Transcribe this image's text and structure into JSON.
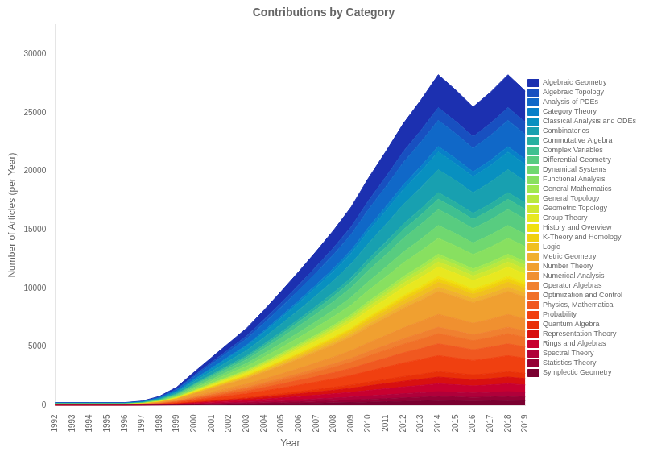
{
  "chart_data": {
    "type": "area",
    "stacked": true,
    "title": "Contributions by Category",
    "xlabel": "Year",
    "ylabel": "Number of Articles (per Year)",
    "x": [
      1992,
      1993,
      1994,
      1995,
      1996,
      1997,
      1998,
      1999,
      2000,
      2001,
      2002,
      2003,
      2004,
      2005,
      2006,
      2007,
      2008,
      2009,
      2010,
      2011,
      2012,
      2013,
      2014,
      2015,
      2016,
      2017,
      2018,
      2019
    ],
    "xlim": [
      1992,
      2019
    ],
    "xticks": [
      1992,
      1993,
      1994,
      1995,
      1996,
      1997,
      1998,
      1999,
      2000,
      2001,
      2002,
      2003,
      2004,
      2005,
      2006,
      2007,
      2008,
      2009,
      2010,
      2011,
      2012,
      2013,
      2014,
      2015,
      2016,
      2017,
      2018,
      2019
    ],
    "ylim": [
      0,
      32500
    ],
    "yticks": [
      0,
      5000,
      10000,
      15000,
      20000,
      25000,
      30000
    ],
    "grid": false,
    "legend": "right",
    "series": [
      {
        "name": "Symplectic Geometry",
        "color": "#7a0030",
        "values": [
          5,
          5,
          5,
          5,
          5,
          8,
          15,
          30,
          55,
          80,
          100,
          115,
          140,
          160,
          185,
          210,
          240,
          265,
          300,
          330,
          360,
          390,
          420,
          400,
          380,
          400,
          420,
          400
        ]
      },
      {
        "name": "Statistics Theory",
        "color": "#950035",
        "values": [
          3,
          3,
          3,
          3,
          3,
          5,
          10,
          20,
          35,
          50,
          65,
          80,
          100,
          120,
          140,
          165,
          185,
          210,
          240,
          270,
          300,
          325,
          355,
          340,
          320,
          335,
          355,
          335
        ]
      },
      {
        "name": "Spectral Theory",
        "color": "#b0003a",
        "values": [
          4,
          4,
          4,
          4,
          4,
          6,
          12,
          24,
          44,
          62,
          82,
          100,
          120,
          145,
          170,
          195,
          220,
          250,
          285,
          315,
          350,
          380,
          410,
          390,
          370,
          390,
          410,
          390
        ]
      },
      {
        "name": "Rings and Algebras",
        "color": "#c80030",
        "values": [
          6,
          6,
          6,
          6,
          6,
          10,
          20,
          38,
          68,
          98,
          128,
          158,
          195,
          235,
          275,
          315,
          360,
          405,
          465,
          520,
          575,
          620,
          670,
          640,
          605,
          635,
          670,
          635
        ]
      },
      {
        "name": "Representation Theory",
        "color": "#d81010",
        "values": [
          5,
          5,
          5,
          5,
          5,
          8,
          16,
          32,
          58,
          84,
          108,
          134,
          165,
          198,
          232,
          268,
          304,
          344,
          394,
          440,
          490,
          530,
          575,
          548,
          518,
          544,
          574,
          545
        ]
      },
      {
        "name": "Quantum Algebra",
        "color": "#e83008",
        "values": [
          4,
          4,
          4,
          4,
          4,
          6,
          13,
          26,
          47,
          68,
          88,
          108,
          134,
          160,
          188,
          216,
          246,
          278,
          318,
          356,
          395,
          428,
          464,
          442,
          418,
          438,
          462,
          439
        ]
      },
      {
        "name": "Probability",
        "color": "#f04010",
        "values": [
          12,
          12,
          12,
          12,
          12,
          18,
          38,
          76,
          138,
          198,
          258,
          318,
          392,
          472,
          552,
          636,
          722,
          818,
          938,
          1050,
          1165,
          1260,
          1365,
          1302,
          1232,
          1293,
          1365,
          1297
        ]
      },
      {
        "name": "Physics, Mathematical",
        "color": "#f05820",
        "values": [
          9,
          9,
          9,
          9,
          9,
          14,
          28,
          56,
          102,
          146,
          190,
          235,
          290,
          348,
          408,
          470,
          534,
          604,
          694,
          776,
          861,
          932,
          1010,
          963,
          910,
          956,
          1010,
          960
        ]
      },
      {
        "name": "Optimization and Control",
        "color": "#f07028",
        "values": [
          8,
          8,
          8,
          8,
          8,
          12,
          24,
          48,
          88,
          126,
          164,
          202,
          250,
          300,
          352,
          406,
          460,
          522,
          598,
          668,
          742,
          804,
          870,
          830,
          785,
          824,
          870,
          827
        ]
      },
      {
        "name": "Operator Algebras",
        "color": "#f08030",
        "values": [
          5,
          5,
          5,
          5,
          5,
          8,
          16,
          30,
          55,
          80,
          104,
          128,
          158,
          190,
          222,
          256,
          292,
          330,
          378,
          422,
          468,
          508,
          550,
          524,
          496,
          520,
          550,
          523
        ]
      },
      {
        "name": "Numerical Analysis",
        "color": "#f09030",
        "values": [
          10,
          10,
          10,
          10,
          10,
          15,
          30,
          60,
          110,
          158,
          206,
          254,
          314,
          376,
          440,
          508,
          578,
          654,
          750,
          838,
          930,
          1008,
          1092,
          1042,
          985,
          1034,
          1092,
          1038
        ]
      },
      {
        "name": "Number Theory",
        "color": "#f0a030",
        "values": [
          18,
          18,
          18,
          18,
          18,
          26,
          54,
          108,
          196,
          282,
          368,
          454,
          560,
          674,
          790,
          908,
          1034,
          1170,
          1342,
          1498,
          1664,
          1802,
          1952,
          1862,
          1762,
          1849,
          1952,
          1856
        ]
      },
      {
        "name": "Metric Geometry",
        "color": "#f0b030",
        "values": [
          3,
          3,
          3,
          3,
          3,
          5,
          10,
          20,
          36,
          52,
          68,
          84,
          104,
          124,
          146,
          168,
          190,
          216,
          248,
          276,
          306,
          332,
          360,
          343,
          325,
          341,
          360,
          342
        ]
      },
      {
        "name": "Logic",
        "color": "#f0c020",
        "values": [
          4,
          4,
          4,
          4,
          4,
          6,
          12,
          24,
          44,
          62,
          82,
          100,
          124,
          148,
          174,
          200,
          228,
          258,
          296,
          330,
          366,
          398,
          430,
          410,
          388,
          407,
          430,
          409
        ]
      },
      {
        "name": "K-Theory and Homology",
        "color": "#f0d010",
        "values": [
          3,
          3,
          3,
          3,
          3,
          4,
          8,
          16,
          29,
          42,
          55,
          68,
          84,
          100,
          118,
          136,
          154,
          174,
          200,
          224,
          248,
          268,
          290,
          277,
          262,
          275,
          290,
          276
        ]
      },
      {
        "name": "History and Overview",
        "color": "#f0e010",
        "values": [
          2,
          2,
          2,
          2,
          2,
          3,
          6,
          12,
          22,
          32,
          42,
          52,
          64,
          76,
          90,
          104,
          118,
          134,
          154,
          172,
          190,
          206,
          224,
          213,
          202,
          212,
          224,
          213
        ]
      },
      {
        "name": "Group Theory",
        "color": "#e8e820",
        "values": [
          7,
          7,
          7,
          7,
          7,
          11,
          22,
          44,
          80,
          114,
          150,
          184,
          228,
          274,
          320,
          368,
          418,
          474,
          544,
          608,
          674,
          730,
          792,
          755,
          715,
          750,
          792,
          753
        ]
      },
      {
        "name": "Geometric Topology",
        "color": "#d0e830",
        "values": [
          4,
          4,
          4,
          4,
          4,
          6,
          12,
          24,
          44,
          62,
          82,
          100,
          124,
          148,
          174,
          200,
          228,
          258,
          296,
          330,
          366,
          398,
          430,
          410,
          388,
          407,
          430,
          409
        ]
      },
      {
        "name": "General Topology",
        "color": "#b8e840",
        "values": [
          3,
          3,
          3,
          3,
          3,
          5,
          10,
          20,
          36,
          52,
          68,
          84,
          104,
          124,
          146,
          168,
          190,
          216,
          248,
          276,
          306,
          332,
          360,
          343,
          325,
          341,
          360,
          342
        ]
      },
      {
        "name": "General Mathematics",
        "color": "#a0e850",
        "values": [
          3,
          3,
          3,
          3,
          3,
          4,
          8,
          16,
          30,
          42,
          56,
          70,
          86,
          104,
          122,
          140,
          160,
          180,
          208,
          232,
          256,
          278,
          302,
          288,
          272,
          286,
          302,
          287
        ]
      },
      {
        "name": "Functional Analysis",
        "color": "#88e060",
        "values": [
          12,
          12,
          12,
          12,
          12,
          18,
          38,
          76,
          138,
          198,
          258,
          318,
          392,
          472,
          552,
          636,
          722,
          818,
          938,
          1050,
          1165,
          1260,
          1365,
          1302,
          1232,
          1293,
          1365,
          1297
        ]
      },
      {
        "name": "Dynamical Systems",
        "color": "#70d870",
        "values": [
          10,
          10,
          10,
          10,
          10,
          15,
          30,
          60,
          110,
          158,
          206,
          254,
          314,
          376,
          440,
          508,
          578,
          654,
          750,
          838,
          930,
          1008,
          1092,
          1042,
          985,
          1034,
          1092,
          1038
        ]
      },
      {
        "name": "Differential Geometry",
        "color": "#58cc80",
        "values": [
          12,
          12,
          12,
          12,
          12,
          18,
          38,
          76,
          138,
          198,
          258,
          318,
          392,
          472,
          552,
          636,
          722,
          818,
          938,
          1050,
          1165,
          1260,
          1365,
          1302,
          1232,
          1293,
          1365,
          1297
        ]
      },
      {
        "name": "Complex Variables",
        "color": "#40c090",
        "values": [
          8,
          8,
          8,
          8,
          8,
          12,
          24,
          48,
          88,
          126,
          164,
          202,
          250,
          300,
          352,
          406,
          460,
          522,
          598,
          668,
          742,
          804,
          870,
          830,
          785,
          824,
          870,
          827
        ]
      },
      {
        "name": "Commutative Algebra",
        "color": "#28b0a0",
        "values": [
          5,
          5,
          5,
          5,
          5,
          8,
          16,
          32,
          58,
          84,
          108,
          134,
          166,
          198,
          232,
          268,
          304,
          344,
          394,
          440,
          490,
          530,
          574,
          547,
          518,
          543,
          574,
          546
        ]
      },
      {
        "name": "Combinatorics",
        "color": "#18a0b0",
        "values": [
          18,
          18,
          18,
          18,
          18,
          26,
          54,
          108,
          196,
          282,
          368,
          454,
          560,
          674,
          790,
          908,
          1034,
          1170,
          1342,
          1498,
          1664,
          1802,
          1952,
          1862,
          1762,
          1849,
          1952,
          1856
        ]
      },
      {
        "name": "Classical Analysis and ODEs",
        "color": "#0890c0",
        "values": [
          14,
          14,
          14,
          14,
          14,
          20,
          42,
          84,
          152,
          218,
          284,
          352,
          434,
          522,
          610,
          702,
          798,
          904,
          1036,
          1158,
          1285,
          1390,
          1508,
          1438,
          1361,
          1428,
          1508,
          1434
        ]
      },
      {
        "name": "Category Theory",
        "color": "#0880c8",
        "values": [
          4,
          4,
          4,
          4,
          4,
          6,
          13,
          26,
          47,
          68,
          88,
          108,
          134,
          160,
          188,
          216,
          246,
          278,
          318,
          356,
          396,
          428,
          464,
          442,
          418,
          439,
          464,
          441
        ]
      },
      {
        "name": "Analysis of PDEs",
        "color": "#1068c8",
        "values": [
          20,
          20,
          20,
          20,
          20,
          30,
          62,
          124,
          226,
          324,
          422,
          522,
          644,
          772,
          904,
          1040,
          1184,
          1340,
          1536,
          1716,
          1906,
          2062,
          2234,
          2131,
          2017,
          2117,
          2234,
          2124
        ]
      },
      {
        "name": "Algebraic Topology",
        "color": "#1850c0",
        "values": [
          10,
          10,
          10,
          10,
          10,
          15,
          30,
          60,
          110,
          158,
          206,
          254,
          314,
          376,
          440,
          508,
          578,
          654,
          750,
          838,
          930,
          1008,
          1092,
          1042,
          985,
          1034,
          1092,
          1038
        ]
      },
      {
        "name": "Algebraic Geometry",
        "color": "#1c30b0",
        "values": [
          25,
          25,
          25,
          25,
          25,
          38,
          78,
          156,
          284,
          406,
          530,
          654,
          808,
          970,
          1136,
          1306,
          1486,
          1682,
          1930,
          2156,
          2394,
          2590,
          2806,
          2677,
          2533,
          2658,
          2806,
          2668
        ]
      }
    ]
  }
}
